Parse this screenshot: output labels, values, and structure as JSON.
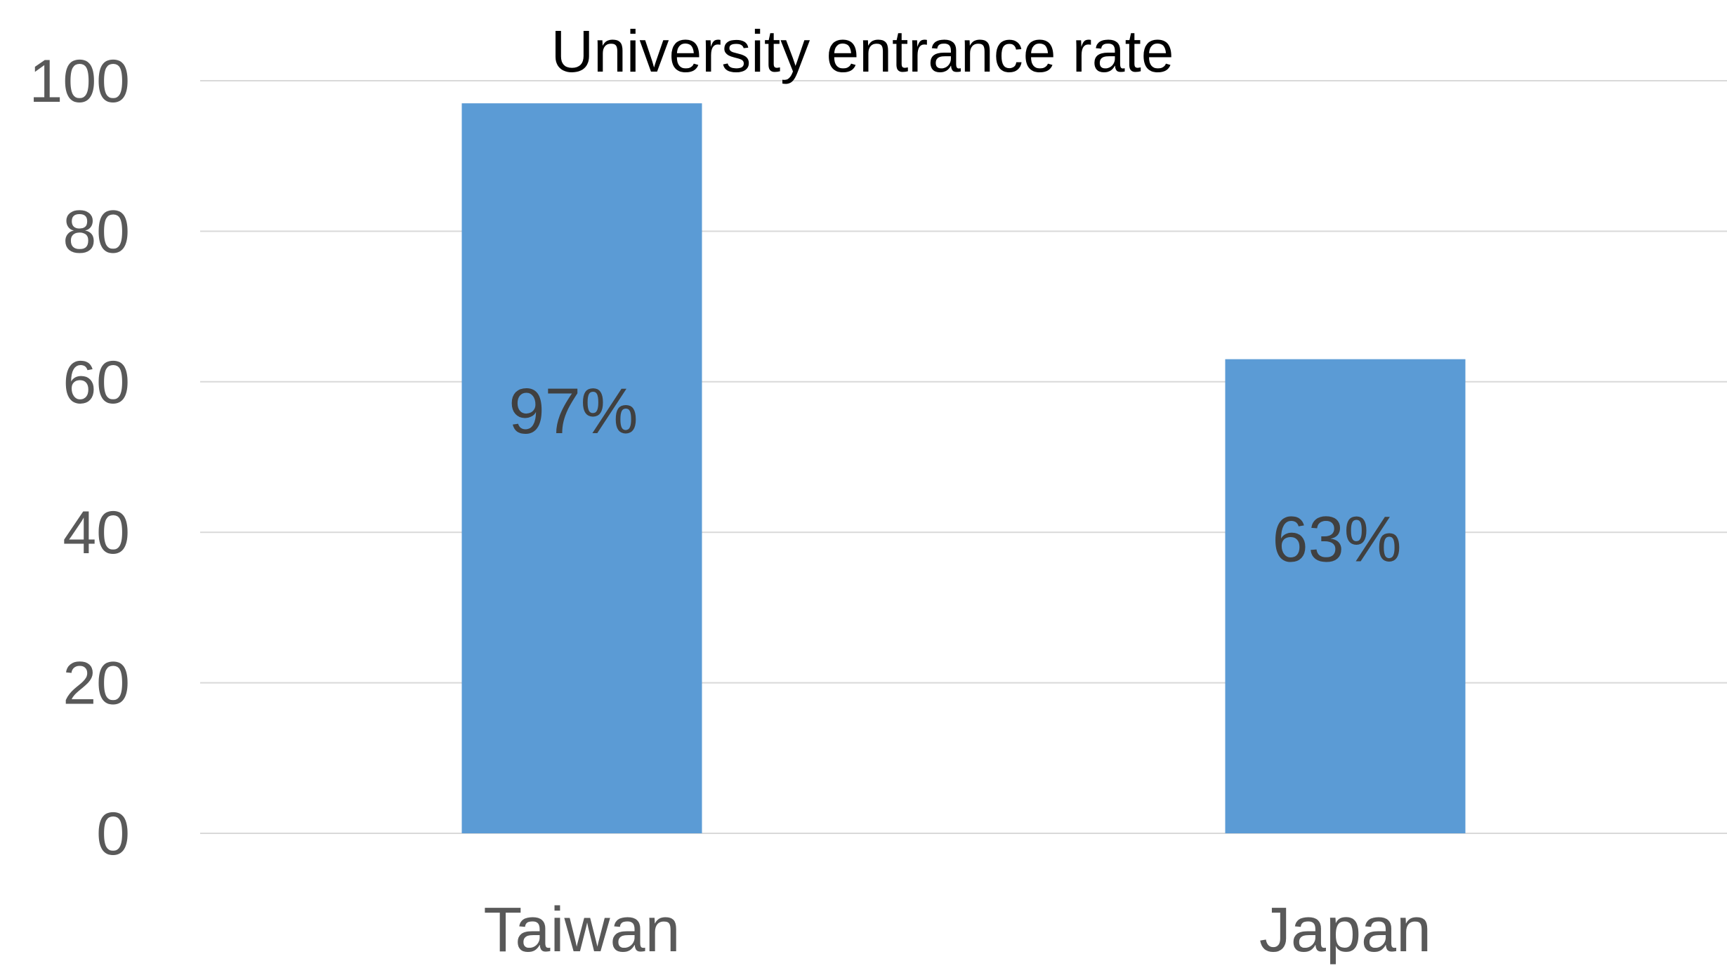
{
  "chart_data": {
    "type": "bar",
    "title": "University entrance rate",
    "categories": [
      "Taiwan",
      "Japan"
    ],
    "values": [
      97,
      63
    ],
    "data_labels": [
      "97%",
      "63%"
    ],
    "xlabel": "",
    "ylabel": "",
    "ylim": [
      0,
      100
    ],
    "yticks": [
      "0",
      "20",
      "40",
      "60",
      "80",
      "100"
    ],
    "grid": true,
    "legend": "none",
    "bar_color": "#5B9BD5"
  }
}
